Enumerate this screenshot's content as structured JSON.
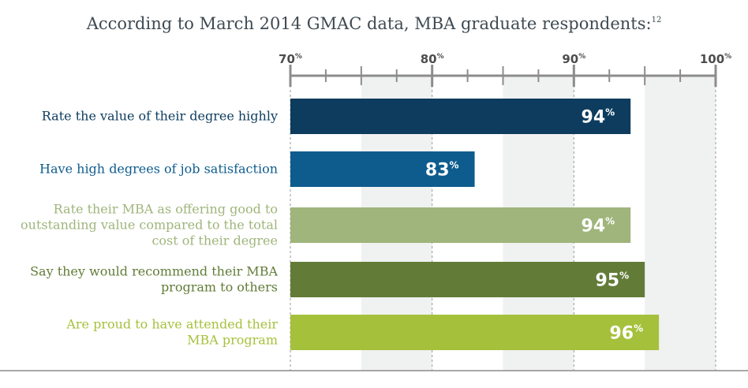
{
  "title": "According to March 2014 GMAC data, MBA graduate respondents:",
  "title_footnote": "12",
  "chart_data": {
    "type": "bar",
    "orientation": "horizontal",
    "categories": [
      "Rate the value of their degree highly",
      "Have high degrees of job satisfaction",
      "Rate their MBA as offering good to outstanding value compared to the total cost of their degree",
      "Say they would recommend their MBA program to others",
      "Are proud to have attended their MBA program"
    ],
    "category_lines": [
      [
        "Rate the value of their degree highly"
      ],
      [
        "Have high degrees of job satisfaction"
      ],
      [
        "Rate their MBA as offering good to",
        "outstanding value compared to the total",
        "cost of their degree"
      ],
      [
        "Say they would recommend their MBA",
        "program to others"
      ],
      [
        "Are proud to have attended their",
        "MBA program"
      ]
    ],
    "values": [
      94,
      83,
      94,
      95,
      96
    ],
    "bar_colors": [
      "#0d3c5e",
      "#0e5c8e",
      "#9fb57c",
      "#627c38",
      "#a5c13c"
    ],
    "label_colors": [
      "#0d3c5e",
      "#0e5c8e",
      "#9fb57c",
      "#627c38",
      "#a5c13c"
    ],
    "value_suffix": "%",
    "xlim": [
      70,
      100
    ],
    "major_ticks": [
      70,
      80,
      90,
      100
    ],
    "minor_step": 2.5,
    "tick_suffix": "%",
    "axis_position": "top",
    "grid": true,
    "band_color": "#f0f1f1"
  }
}
